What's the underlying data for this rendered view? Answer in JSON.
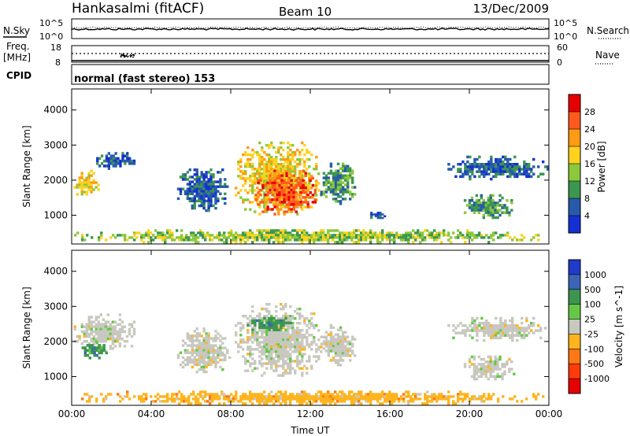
{
  "header": {
    "title": "Hankasalmi (fitACF)",
    "beam": "Beam 10",
    "date": "13/Dec/2009"
  },
  "status_panel": {
    "nsky_label": "N.Sky",
    "nsearch_label": "N.Search",
    "tick_top": "10^5",
    "tick_bottom": "10^0",
    "freq_label": "Freq.",
    "freq_unit": "[MHz]",
    "freq_ticks": [
      "18",
      "8"
    ],
    "nave_label": "Nave",
    "nave_ticks": [
      "60",
      "0"
    ],
    "cpid_label": "CPID",
    "cpid_text": "normal (fast stereo) 153"
  },
  "chart_data": [
    {
      "type": "heatmap",
      "panel": "power",
      "xlabel": "",
      "ylabel": "Slant Range [km]",
      "x_ticks": [
        "00:00",
        "04:00",
        "08:00",
        "12:00",
        "16:00",
        "20:00",
        "00:00"
      ],
      "xlim_hours": [
        0,
        24
      ],
      "y_ticks": [
        1000,
        2000,
        3000,
        4000
      ],
      "ylim": [
        180,
        4600
      ],
      "colorbar_label": "Power [dB]",
      "colorbar_ticks": [
        "28",
        "24",
        "20",
        "16",
        "12",
        "8",
        "4"
      ],
      "colorbar_colors": [
        "#e60000",
        "#ff5a1e",
        "#ff9a14",
        "#ffd21e",
        "#8cc83c",
        "#3c9650",
        "#285aaa",
        "#1430d2"
      ],
      "echo_regions": [
        {
          "hours": [
            0.1,
            1.4
          ],
          "range_km": [
            1500,
            2300
          ],
          "level": 4
        },
        {
          "hours": [
            1.0,
            3.2
          ],
          "range_km": [
            2300,
            2800
          ],
          "level": 1
        },
        {
          "hours": [
            5.3,
            8.0
          ],
          "range_km": [
            1100,
            2400
          ],
          "level": 1
        },
        {
          "hours": [
            8.2,
            12.6
          ],
          "range_km": [
            1000,
            3100
          ],
          "level": 4
        },
        {
          "hours": [
            9.2,
            12.3
          ],
          "range_km": [
            1000,
            2300
          ],
          "level": 6
        },
        {
          "hours": [
            12.5,
            14.3
          ],
          "range_km": [
            1300,
            2500
          ],
          "level": 2
        },
        {
          "hours": [
            14.9,
            15.8
          ],
          "range_km": [
            900,
            1100
          ],
          "level": 1
        },
        {
          "hours": [
            18.9,
            24.0
          ],
          "range_km": [
            2000,
            2700
          ],
          "level": 1
        },
        {
          "hours": [
            19.6,
            22.3
          ],
          "range_km": [
            900,
            1600
          ],
          "level": 2
        },
        {
          "hours": [
            0.0,
            24.0
          ],
          "range_km": [
            200,
            600
          ],
          "level": 3
        }
      ]
    },
    {
      "type": "heatmap",
      "panel": "velocity",
      "xlabel": "Time UT",
      "ylabel": "Slant Range [km]",
      "x_ticks": [
        "00:00",
        "04:00",
        "08:00",
        "12:00",
        "16:00",
        "20:00",
        "00:00"
      ],
      "xlim_hours": [
        0,
        24
      ],
      "y_ticks": [
        1000,
        2000,
        3000,
        4000
      ],
      "ylim": [
        180,
        4600
      ],
      "colorbar_label": "Velocity [m s^-1]",
      "colorbar_ticks": [
        "1000",
        "500",
        "100",
        "25",
        "-25",
        "-100",
        "-500",
        "-1000"
      ],
      "colorbar_colors": [
        "#1e3cc8",
        "#3c64b4",
        "#3c9650",
        "#64c846",
        "#c8c8c0",
        "#ffb41e",
        "#ff7814",
        "#ff3c0a",
        "#e60000"
      ],
      "echo_regions": [
        {
          "hours": [
            0.1,
            3.2
          ],
          "range_km": [
            1700,
            2800
          ],
          "level": 4
        },
        {
          "hours": [
            0.5,
            1.8
          ],
          "range_km": [
            1500,
            2000
          ],
          "level": 6
        },
        {
          "hours": [
            5.3,
            8.0
          ],
          "range_km": [
            1100,
            2400
          ],
          "level": 4
        },
        {
          "hours": [
            8.2,
            12.6
          ],
          "range_km": [
            1000,
            3100
          ],
          "level": 4
        },
        {
          "hours": [
            8.8,
            11.3
          ],
          "range_km": [
            2300,
            2700
          ],
          "level": 6
        },
        {
          "hours": [
            12.5,
            14.3
          ],
          "range_km": [
            1300,
            2500
          ],
          "level": 4
        },
        {
          "hours": [
            18.9,
            24.0
          ],
          "range_km": [
            2000,
            2700
          ],
          "level": 4
        },
        {
          "hours": [
            19.6,
            22.3
          ],
          "range_km": [
            900,
            1600
          ],
          "level": 4
        },
        {
          "hours": [
            0.0,
            24.0
          ],
          "range_km": [
            200,
            600
          ],
          "level": 3
        }
      ]
    }
  ]
}
